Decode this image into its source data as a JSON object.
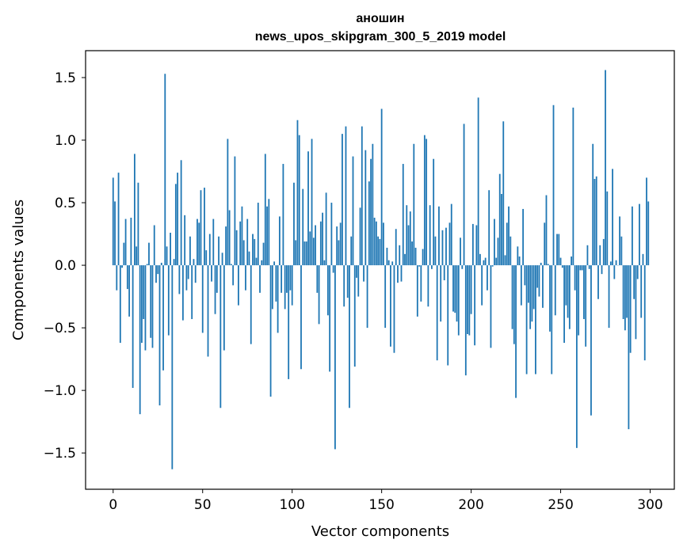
{
  "chart_data": {
    "type": "bar",
    "title": [
      "аношин",
      "news_upos_skipgram_300_5_2019 model"
    ],
    "xlabel": "Vector components",
    "ylabel": "Components values",
    "xlim": [
      -15.4,
      313.5
    ],
    "ylim": [
      -1.79,
      1.715
    ],
    "xticks": [
      0,
      50,
      100,
      150,
      200,
      250,
      300
    ],
    "xtick_labels": [
      "0",
      "50",
      "100",
      "150",
      "200",
      "250",
      "300"
    ],
    "yticks": [
      1.5,
      1.0,
      0.5,
      0.0,
      -0.5,
      -1.0,
      -1.5
    ],
    "ytick_labels": [
      "1.5",
      "1.0",
      "0.5",
      "0.0",
      "−0.5",
      "−1.0",
      "−1.5"
    ],
    "grid": false,
    "color": "#1f77b4",
    "bar_width": 0.8,
    "values": [
      0.7,
      0.51,
      -0.2,
      0.74,
      -0.62,
      -0.02,
      0.18,
      0.37,
      -0.19,
      -0.41,
      0.38,
      -0.98,
      0.89,
      0.15,
      0.66,
      -1.19,
      -0.62,
      -0.43,
      -0.68,
      0.01,
      0.18,
      -0.58,
      -0.66,
      0.32,
      -0.14,
      -0.07,
      -1.12,
      0.02,
      -0.84,
      1.53,
      0.15,
      -0.56,
      0.26,
      -1.63,
      0.05,
      0.65,
      0.74,
      -0.23,
      0.84,
      -0.44,
      0.4,
      -0.2,
      -0.11,
      0.23,
      -0.43,
      0.05,
      -0.14,
      0.37,
      0.34,
      0.6,
      -0.54,
      0.62,
      0.12,
      -0.73,
      0.25,
      -0.13,
      0.37,
      -0.39,
      -0.22,
      0.23,
      -1.14,
      0.1,
      -0.68,
      0.31,
      1.01,
      0.44,
      0.01,
      -0.16,
      0.87,
      0.28,
      -0.32,
      0.35,
      0.47,
      0.2,
      -0.2,
      0.37,
      0.11,
      -0.63,
      0.25,
      0.21,
      0.06,
      0.5,
      -0.22,
      0.04,
      0.18,
      0.89,
      0.47,
      0.53,
      -1.05,
      -0.35,
      0.03,
      -0.29,
      -0.54,
      0.39,
      -0.22,
      0.81,
      -0.35,
      -0.22,
      -0.91,
      -0.2,
      -0.32,
      0.66,
      0.2,
      1.16,
      1.04,
      -0.83,
      0.61,
      0.19,
      0.19,
      0.91,
      0.27,
      1.01,
      0.22,
      0.32,
      -0.22,
      -0.47,
      0.35,
      0.42,
      0.04,
      0.58,
      -0.4,
      -0.85,
      0.5,
      -0.06,
      -1.47,
      0.31,
      0.2,
      0.34,
      1.05,
      -0.33,
      1.11,
      -0.26,
      -1.14,
      0.23,
      0.87,
      -0.81,
      -0.1,
      -0.25,
      0.46,
      1.11,
      -0.13,
      0.92,
      -0.5,
      0.67,
      0.85,
      0.97,
      0.38,
      0.35,
      0.23,
      0.21,
      1.25,
      0.34,
      -0.5,
      0.14,
      0.04,
      -0.65,
      0.03,
      -0.7,
      0.29,
      -0.14,
      0.16,
      -0.13,
      0.81,
      0.09,
      0.48,
      0.32,
      0.43,
      0.19,
      0.97,
      0.14,
      -0.41,
      -0.01,
      -0.29,
      0.13,
      1.04,
      1.01,
      -0.33,
      0.48,
      -0.03,
      0.85,
      0.23,
      -0.76,
      0.47,
      -0.45,
      0.28,
      -0.12,
      0.3,
      -0.8,
      0.34,
      0.49,
      -0.37,
      -0.38,
      -0.45,
      -0.56,
      0.22,
      -0.03,
      1.13,
      -0.88,
      -0.55,
      -0.56,
      -0.39,
      0.33,
      -0.64,
      0.32,
      1.34,
      0.09,
      -0.32,
      0.04,
      0.06,
      -0.2,
      0.6,
      -0.66,
      -0.01,
      0.37,
      0.06,
      0.22,
      0.73,
      0.57,
      1.15,
      0.08,
      0.34,
      0.47,
      0.23,
      -0.51,
      -0.63,
      -1.06,
      0.15,
      0.07,
      -0.32,
      0.45,
      -0.16,
      -0.87,
      -0.3,
      -0.51,
      -0.45,
      -0.35,
      -0.87,
      -0.18,
      -0.25,
      0.02,
      -0.34,
      0.34,
      0.56,
      0.01,
      -0.53,
      -0.87,
      1.28,
      -0.4,
      0.25,
      0.25,
      0.06,
      -0.02,
      -0.62,
      -0.32,
      -0.42,
      -0.51,
      0.07,
      1.26,
      -0.2,
      -1.46,
      -0.56,
      -0.04,
      -0.04,
      -0.43,
      -0.65,
      0.16,
      -0.03,
      -1.2,
      0.97,
      0.69,
      0.71,
      -0.27,
      0.16,
      -0.07,
      0.21,
      1.56,
      0.59,
      -0.5,
      0.03,
      0.77,
      -0.11,
      0.04,
      0.0,
      0.39,
      0.23,
      -0.43,
      -0.52,
      -0.42,
      -1.31,
      -0.7,
      0.47,
      -0.27,
      -0.59,
      -0.11,
      0.49,
      -0.42,
      0.09,
      -0.76,
      0.7,
      0.51
    ]
  }
}
